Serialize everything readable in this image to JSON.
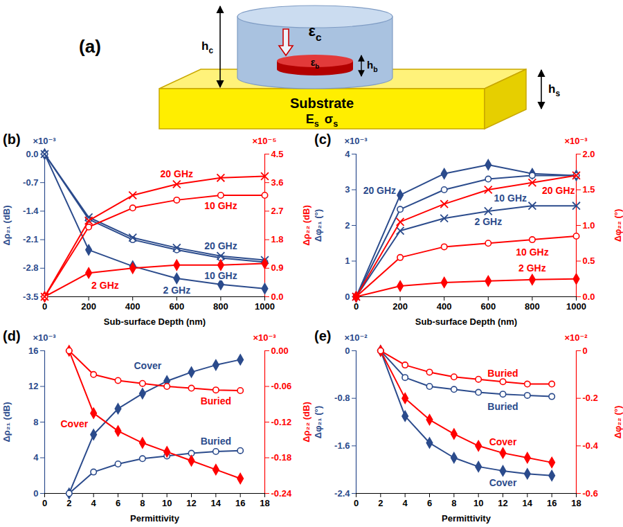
{
  "diagram": {
    "label": "(a)",
    "cover_permittivity": {
      "symbol": "ε",
      "subscript": "c"
    },
    "cover_height": {
      "symbol": "h",
      "subscript": "c"
    },
    "buried_permittivity": {
      "symbol": "ε",
      "subscript": "b"
    },
    "buried_height": {
      "symbol": "h",
      "subscript": "b"
    },
    "substrate": "Substrate",
    "substrate_properties": [
      {
        "symbol": "E",
        "subscript": "s"
      },
      {
        "symbol": "σ",
        "subscript": "s"
      }
    ],
    "substrate_height": {
      "symbol": "h",
      "subscript": "s"
    }
  },
  "chart_data": [
    {
      "type": "line",
      "title": "(b)",
      "x_label": "Sub-surface Depth (nm)",
      "y_label": "Δρ₂₁ (dB)",
      "y2_label": "Δρ₂₂ (dB)",
      "y_multiplier": "×10⁻³",
      "y2_multiplier": "×10⁻⁵",
      "x": [
        0,
        200,
        400,
        600,
        800,
        1000
      ],
      "xlim": [
        0,
        1000
      ],
      "xticks": [
        0,
        200,
        400,
        600,
        800,
        1000
      ],
      "ylim": [
        -3.5,
        0
      ],
      "yticks": [
        {
          "value": 0,
          "label": "0.0"
        },
        -0.7,
        -1.4,
        -2.1,
        -2.8,
        -3.5
      ],
      "y2lim": [
        0,
        4.5
      ],
      "y2ticks": [
        {
          "value": 0,
          "label": "0.0"
        },
        0.9,
        1.8,
        2.7,
        3.6,
        4.5
      ],
      "series": [
        {
          "name": "2 GHz",
          "color": "#2b4b8c",
          "marker": "diamond",
          "values": [
            0,
            -2.35,
            -2.75,
            -3.05,
            -3.2,
            -3.3
          ]
        },
        {
          "name": "10 GHz",
          "color": "#2b4b8c",
          "marker": "circle",
          "values": [
            0,
            -1.6,
            -2.1,
            -2.35,
            -2.55,
            -2.65
          ]
        },
        {
          "name": "20 GHz",
          "color": "#2b4b8c",
          "marker": "x",
          "values": [
            0,
            -1.55,
            -2.05,
            -2.3,
            -2.5,
            -2.6
          ]
        },
        {
          "name": "2 GHz",
          "color": "#ff0000",
          "marker": "diamond",
          "axis": "y2",
          "values": [
            0,
            0.75,
            0.9,
            1.0,
            1.0,
            1.05
          ]
        },
        {
          "name": "10 GHz",
          "color": "#ff0000",
          "marker": "circle",
          "axis": "y2",
          "values": [
            0,
            2.2,
            2.8,
            3.05,
            3.2,
            3.2
          ]
        },
        {
          "name": "20 GHz",
          "color": "#ff0000",
          "marker": "x",
          "axis": "y2",
          "values": [
            0,
            2.4,
            3.2,
            3.55,
            3.75,
            3.8
          ]
        }
      ]
    },
    {
      "type": "line",
      "title": "(c)",
      "x_label": "Sub-surface Depth (nm)",
      "y_label": "Δφ₂₁ (°)",
      "y2_label": "Δφ₂₂ (°)",
      "y_multiplier": "×10⁻³",
      "y2_multiplier": "×10⁻³",
      "x": [
        0,
        200,
        400,
        600,
        800,
        1000
      ],
      "xlim": [
        0,
        1000
      ],
      "xticks": [
        0,
        200,
        400,
        600,
        800,
        1000
      ],
      "ylim": [
        0,
        4
      ],
      "yticks": [
        0,
        1,
        2,
        3,
        4
      ],
      "y2lim": [
        0,
        2
      ],
      "y2ticks": [
        {
          "value": 0,
          "label": "0.0"
        },
        0.5,
        {
          "value": 1,
          "label": "1.0"
        },
        1.5,
        {
          "value": 2,
          "label": "2.0"
        }
      ],
      "series": [
        {
          "name": "20 GHz",
          "color": "#2b4b8c",
          "marker": "diamond",
          "values": [
            0,
            2.85,
            3.45,
            3.7,
            3.45,
            3.4
          ]
        },
        {
          "name": "10 GHz",
          "color": "#2b4b8c",
          "marker": "circle",
          "values": [
            0,
            2.45,
            3.0,
            3.3,
            3.4,
            3.4
          ]
        },
        {
          "name": "2 GHz",
          "color": "#2b4b8c",
          "marker": "x",
          "values": [
            0,
            1.85,
            2.2,
            2.4,
            2.55,
            2.55
          ]
        },
        {
          "name": "20 GHz",
          "color": "#ff0000",
          "marker": "x",
          "axis": "y2",
          "values": [
            0,
            1.05,
            1.3,
            1.5,
            1.6,
            1.7
          ]
        },
        {
          "name": "10 GHz",
          "color": "#ff0000",
          "marker": "circle",
          "axis": "y2",
          "values": [
            0,
            0.55,
            0.7,
            0.75,
            0.8,
            0.85
          ]
        },
        {
          "name": "2 GHz",
          "color": "#ff0000",
          "marker": "diamond",
          "axis": "y2",
          "values": [
            0,
            0.15,
            0.2,
            0.22,
            0.24,
            0.25
          ]
        }
      ]
    },
    {
      "type": "line",
      "title": "(d)",
      "x_label": "Permittivity",
      "y_label": "Δρ₂₁ (dB)",
      "y2_label": "Δρ₂₂ (dB)",
      "y_multiplier": "×10⁻³",
      "y2_multiplier": "×10⁻³",
      "x": [
        2,
        4,
        6,
        8,
        10,
        12,
        14,
        16
      ],
      "xlim": [
        0,
        18
      ],
      "xticks": [
        0,
        2,
        4,
        6,
        8,
        10,
        12,
        14,
        16,
        18
      ],
      "ylim": [
        0,
        16
      ],
      "yticks": [
        0,
        4,
        8,
        12,
        16
      ],
      "y2lim": [
        -0.24,
        0
      ],
      "y2ticks": [
        {
          "value": 0,
          "label": "0.00"
        },
        -0.06,
        -0.12,
        -0.18,
        -0.24
      ],
      "series": [
        {
          "name": "Cover",
          "color": "#2b4b8c",
          "marker": "diamond",
          "values": [
            0,
            6.6,
            9.5,
            11.2,
            12.6,
            13.6,
            14.4,
            15.0
          ]
        },
        {
          "name": "Buried",
          "color": "#2b4b8c",
          "marker": "circle",
          "values": [
            0,
            2.4,
            3.3,
            3.9,
            4.2,
            4.5,
            4.7,
            4.8
          ]
        },
        {
          "name": "Cover",
          "color": "#ff0000",
          "marker": "diamond",
          "axis": "y2",
          "values": [
            0,
            -0.105,
            -0.135,
            -0.155,
            -0.17,
            -0.185,
            -0.2,
            -0.215
          ]
        },
        {
          "name": "Buried",
          "color": "#ff0000",
          "marker": "circle",
          "axis": "y2",
          "values": [
            0,
            -0.04,
            -0.05,
            -0.055,
            -0.06,
            -0.063,
            -0.066,
            -0.067
          ]
        }
      ]
    },
    {
      "type": "line",
      "title": "(e)",
      "x_label": "Permittivity",
      "y_label": "Δφ₂₁ (°)",
      "y2_label": "Δφ₂₂ (°)",
      "y_multiplier": "×10⁻²",
      "y2_multiplier": "×10⁻²",
      "x": [
        2,
        4,
        6,
        8,
        10,
        12,
        14,
        16
      ],
      "xlim": [
        0,
        18
      ],
      "xticks": [
        0,
        2,
        4,
        6,
        8,
        10,
        12,
        14,
        16,
        18
      ],
      "ylim": [
        -2.4,
        0
      ],
      "yticks": [
        0,
        -0.8,
        -1.6,
        -2.4
      ],
      "y2lim": [
        -0.6,
        0
      ],
      "y2ticks": [
        0,
        -0.2,
        -0.4,
        -0.6
      ],
      "series": [
        {
          "name": "Cover",
          "color": "#2b4b8c",
          "marker": "diamond",
          "values": [
            0,
            -1.1,
            -1.55,
            -1.8,
            -1.95,
            -2.02,
            -2.07,
            -2.1
          ]
        },
        {
          "name": "Buried",
          "color": "#2b4b8c",
          "marker": "circle",
          "values": [
            0,
            -0.45,
            -0.6,
            -0.65,
            -0.7,
            -0.73,
            -0.75,
            -0.77
          ]
        },
        {
          "name": "Cover",
          "color": "#ff0000",
          "marker": "diamond",
          "axis": "y2",
          "values": [
            0,
            -0.2,
            -0.29,
            -0.35,
            -0.4,
            -0.43,
            -0.45,
            -0.47
          ]
        },
        {
          "name": "Buried",
          "color": "#ff0000",
          "marker": "circle",
          "axis": "y2",
          "values": [
            0,
            -0.06,
            -0.09,
            -0.11,
            -0.12,
            -0.13,
            -0.14,
            -0.14
          ]
        }
      ]
    }
  ]
}
